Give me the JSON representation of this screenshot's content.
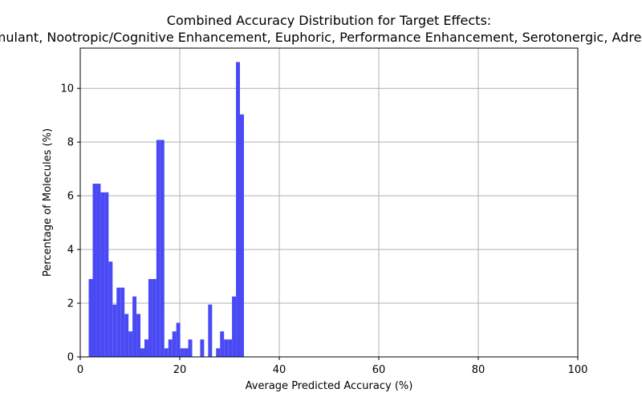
{
  "chart_data": {
    "type": "bar",
    "title_line1": "Combined Accuracy Distribution for Target Effects:",
    "title_line2": "Stimulant, Nootropic/Cognitive Enhancement, Euphoric, Performance Enhancement, Serotonergic, Adrenergic",
    "xlabel": "Average Predicted Accuracy (%)",
    "ylabel": "Percentage of Molecules (%)",
    "xlim": [
      0,
      100
    ],
    "ylim": [
      0,
      11.5
    ],
    "xticks": [
      0,
      20,
      40,
      60,
      80,
      100
    ],
    "yticks": [
      0,
      2,
      4,
      6,
      8,
      10
    ],
    "grid": true,
    "bar_color": "#4a4af5",
    "bin_width": 0.8,
    "bin_starts": [
      1.7,
      2.5,
      3.3,
      4.1,
      4.9,
      5.7,
      6.5,
      7.3,
      8.1,
      8.9,
      9.7,
      10.5,
      11.3,
      12.1,
      12.9,
      13.7,
      14.5,
      15.3,
      16.1,
      16.9,
      17.7,
      18.5,
      19.3,
      20.1,
      20.9,
      21.7,
      22.5,
      23.3,
      24.1,
      24.9,
      25.7,
      26.5,
      27.3,
      28.1,
      28.9,
      29.7,
      30.5,
      31.3,
      32.1,
      32.9,
      33.7
    ],
    "values": [
      2.9,
      6.45,
      6.45,
      6.13,
      6.13,
      3.55,
      1.95,
      2.58,
      2.58,
      1.6,
      0.95,
      2.25,
      1.6,
      0.32,
      0.65,
      2.9,
      2.9,
      8.08,
      8.08,
      0.32,
      0.65,
      0.95,
      1.27,
      0.32,
      0.32,
      0.65,
      0,
      0,
      0.65,
      0,
      1.95,
      0,
      0.32,
      0.95,
      0.65,
      0.65,
      2.25,
      10.98,
      9.03,
      0,
      0
    ]
  }
}
